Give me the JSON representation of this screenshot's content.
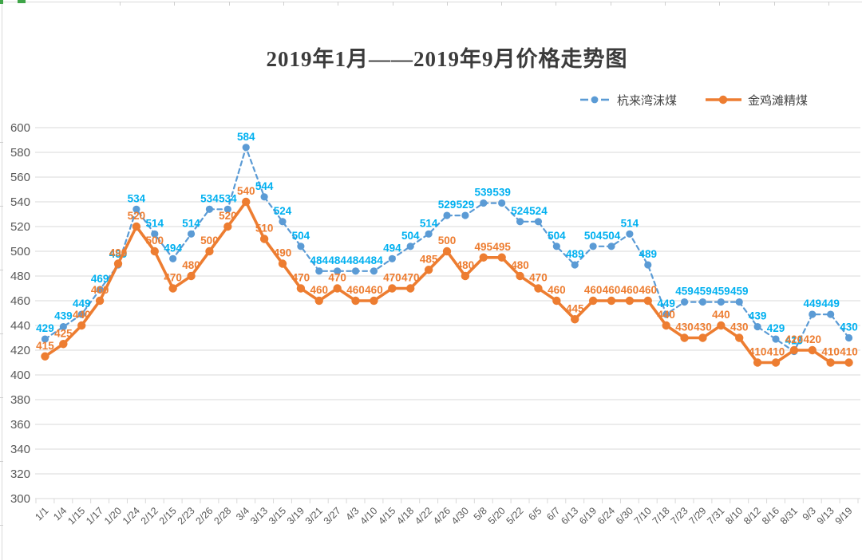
{
  "chart_data": {
    "type": "line",
    "title": "2019年1月——2019年9月价格走势图",
    "xlabel": "",
    "ylabel": "",
    "ylim": [
      300,
      600
    ],
    "ytick_step": 20,
    "grid": true,
    "legend_position": "top-right",
    "x_label_rotation": 45,
    "data_labels": true,
    "categories": [
      "1/1",
      "1/4",
      "1/15",
      "1/17",
      "1/20",
      "1/24",
      "2/12",
      "2/15",
      "2/23",
      "2/26",
      "2/28",
      "3/4",
      "3/13",
      "3/15",
      "3/19",
      "3/21",
      "3/27",
      "4/3",
      "4/10",
      "4/15",
      "4/18",
      "4/22",
      "4/26",
      "4/30",
      "5/8",
      "5/20",
      "5/22",
      "6/5",
      "6/7",
      "6/13",
      "6/19",
      "6/24",
      "6/30",
      "7/10",
      "7/18",
      "7/23",
      "7/29",
      "7/31",
      "8/10",
      "8/12",
      "8/16",
      "8/31",
      "9/3",
      "9/13",
      "9/19"
    ],
    "series": [
      {
        "name": "杭来湾沫煤",
        "line_style": "dashed",
        "marker": "circle",
        "line_color": "#5B9BD5",
        "label_color": "#00B0F0",
        "values": [
          429,
          439,
          449,
          469,
          489,
          534,
          514,
          494,
          514,
          534,
          534,
          584,
          544,
          524,
          504,
          484,
          484,
          484,
          484,
          494,
          504,
          514,
          529,
          529,
          539,
          539,
          524,
          524,
          504,
          489,
          504,
          504,
          514,
          489,
          449,
          459,
          459,
          459,
          459,
          439,
          429,
          419,
          449,
          449,
          430
        ]
      },
      {
        "name": "金鸡滩精煤",
        "line_style": "solid",
        "marker": "circle",
        "line_color": "#ED7D31",
        "label_color": "#ED7D31",
        "values": [
          415,
          425,
          440,
          460,
          490,
          520,
          500,
          470,
          480,
          500,
          520,
          540,
          510,
          490,
          470,
          460,
          470,
          460,
          460,
          470,
          470,
          485,
          500,
          480,
          495,
          495,
          480,
          470,
          460,
          445,
          460,
          460,
          460,
          460,
          440,
          430,
          430,
          440,
          430,
          410,
          410,
          420,
          420,
          410,
          410
        ]
      }
    ],
    "ytick_labels": [
      "300",
      "320",
      "340",
      "360",
      "380",
      "400",
      "420",
      "440",
      "460",
      "480",
      "500",
      "520",
      "540",
      "560",
      "580",
      "600"
    ]
  },
  "colors": {
    "grid": "#D9D9D9",
    "axis_text": "#595959",
    "title_text": "#3B3B3B",
    "legend_text": "#444444",
    "sheet_line": "#D9D9D9",
    "sheet_tick": "#CFCFCF",
    "sheet_accent_green": "#3FA548",
    "background": "#FFFFFF"
  }
}
